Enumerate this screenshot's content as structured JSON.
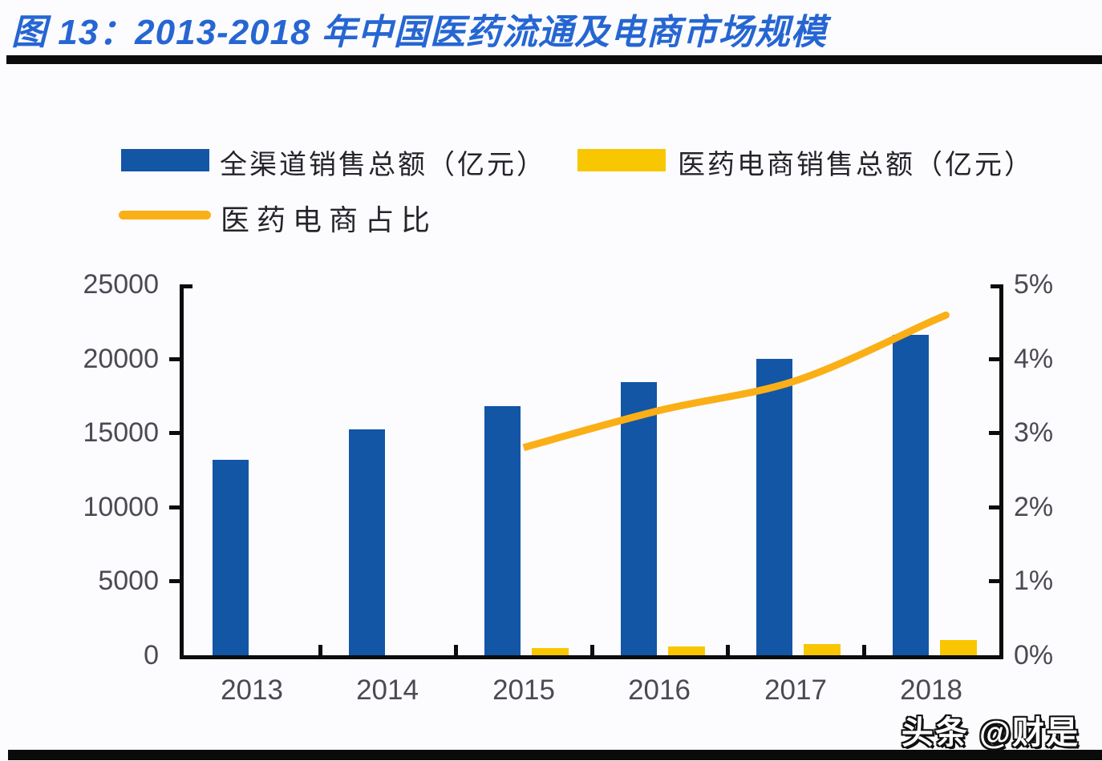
{
  "title": "图 13：2013-2018 年中国医药流通及电商市场规模",
  "watermark": "头条 @财是",
  "colors": {
    "title_blue": "#2666D2",
    "bar_blue": "#1356A6",
    "bar_yellow": "#F9C602",
    "line_yellow": "#FBAF17",
    "axis_black": "#0C0C0C",
    "label_gray": "#4B4A54"
  },
  "legend": {
    "items": [
      {
        "label": "全渠道销售总额（亿元）",
        "type": "bar",
        "color": "#1356A6"
      },
      {
        "label": "医药电商销售总额（亿元）",
        "type": "bar",
        "color": "#F9C602"
      },
      {
        "label": "医药电商占比",
        "type": "line",
        "color": "#FBAF17"
      }
    ]
  },
  "chart_data": {
    "type": "bar",
    "title": "2013-2018 年中国医药流通及电商市场规模",
    "categories": [
      "2013",
      "2014",
      "2015",
      "2016",
      "2017",
      "2018"
    ],
    "series": [
      {
        "name": "全渠道销售总额（亿元）",
        "kind": "bar",
        "axis": "left",
        "color": "#1356A6",
        "values": [
          13200,
          15200,
          16800,
          18400,
          20000,
          21600
        ]
      },
      {
        "name": "医药电商销售总额（亿元）",
        "kind": "bar",
        "axis": "left",
        "color": "#F9C602",
        "values": [
          null,
          null,
          480,
          620,
          750,
          1000
        ]
      },
      {
        "name": "医药电商占比",
        "kind": "line",
        "axis": "right",
        "color": "#FBAF17",
        "values": [
          null,
          null,
          2.8,
          3.3,
          3.7,
          4.5
        ]
      }
    ],
    "left_axis": {
      "min": 0,
      "max": 25000,
      "tick_values": [
        0,
        5000,
        10000,
        15000,
        20000,
        25000
      ],
      "tick_labels": [
        "0",
        "5000",
        "10000",
        "15000",
        "20000",
        "25000"
      ]
    },
    "right_axis": {
      "min": 0,
      "max": 5,
      "tick_values": [
        0,
        1,
        2,
        3,
        4,
        5
      ],
      "tick_labels": [
        "0%",
        "1%",
        "2%",
        "3%",
        "4%",
        "5%"
      ]
    },
    "grid": false,
    "legend_position": "top-left"
  }
}
